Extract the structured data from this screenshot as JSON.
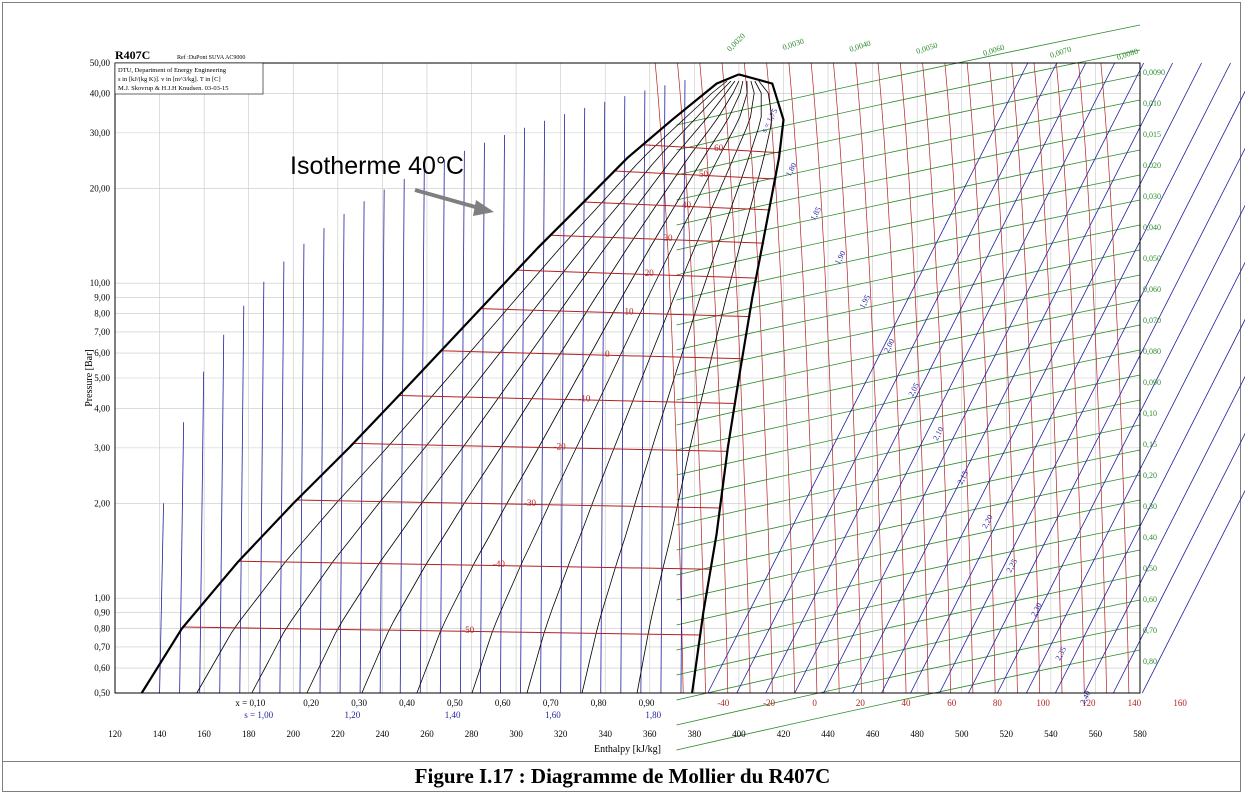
{
  "caption": "Figure I.17 : Diagramme de Mollier du R407C",
  "annotation": {
    "text": "Isotherme 40°C"
  },
  "chart_data": {
    "type": "line",
    "title": "R407C",
    "subtitle": "Ref :DuPont SUVA AC9000",
    "info_lines": [
      "DTU, Department of Energy Engineering",
      "s in [kJ/(kg K)]. v in [m^3/kg]. T in [C]",
      "M.J. Skovrup & H.J.H Knudsen. 03-03-15"
    ],
    "xlabel": "Enthalpy [kJ/kg]",
    "ylabel": "Pressure [Bar]",
    "xlim": [
      120,
      580
    ],
    "ylim": [
      0.5,
      50
    ],
    "yscale": "log",
    "grid": true,
    "x_ticks": [
      "120",
      "140",
      "160",
      "180",
      "200",
      "220",
      "240",
      "260",
      "280",
      "300",
      "320",
      "340",
      "360",
      "380",
      "400",
      "420",
      "440",
      "460",
      "480",
      "500",
      "520",
      "540",
      "560",
      "580"
    ],
    "y_ticks": [
      "0,50",
      "0,60",
      "0,70",
      "0,80",
      "0,90",
      "1,00",
      "2,00",
      "3,00",
      "4,00",
      "5,00",
      "6,00",
      "7,00",
      "8,00",
      "9,00",
      "10,00",
      "20,00",
      "30,00",
      "40,00",
      "50,00"
    ],
    "quality_labels": [
      "x = 0,10",
      "0,20",
      "0,30",
      "0,40",
      "0,50",
      "0,60",
      "0,70",
      "0,80",
      "0,90"
    ],
    "entropy_bottom_labels": [
      "s = 1,00",
      "1,20",
      "1,40",
      "1,60",
      "1,80"
    ],
    "temp_bottom_labels": [
      "-40",
      "-20",
      "0",
      "20",
      "40",
      "60",
      "80",
      "100",
      "120",
      "140",
      "160"
    ],
    "isotherm_labels": [
      "60",
      "50",
      "40",
      "30",
      "20",
      "10",
      "0",
      "-10",
      "-20",
      "-30",
      "-40",
      "-50"
    ],
    "entropy_vapor_labels": [
      "s = 1,75",
      "1,80",
      "1,85",
      "1,90",
      "1,95",
      "2,00",
      "2,05",
      "2,10",
      "2,15",
      "2,20",
      "2,25",
      "2,30",
      "2,35",
      "2,40"
    ],
    "volume_labels": [
      "0,0030",
      "0,0040",
      "0,0050",
      "0,0060",
      "0,0070",
      "0,0080",
      "0,0090",
      "0,010",
      "0,015",
      "0,020",
      "0,030",
      "0,040",
      "0,050",
      "0,060",
      "0,070",
      "0,080",
      "0,090",
      "0,10",
      "0,15",
      "0,20",
      "0,30",
      "0,40",
      "0,50",
      "0,60",
      "0,70",
      "0,80"
    ],
    "volume_top_label": "0,0020",
    "saturation_dome": {
      "liquid": [
        [
          132,
          0.5
        ],
        [
          150,
          0.8
        ],
        [
          175,
          1.3
        ],
        [
          200,
          2.0
        ],
        [
          225,
          3.0
        ],
        [
          250,
          4.6
        ],
        [
          270,
          6.5
        ],
        [
          290,
          9.2
        ],
        [
          310,
          13
        ],
        [
          330,
          18
        ],
        [
          350,
          25
        ],
        [
          370,
          33
        ],
        [
          390,
          43
        ],
        [
          400,
          46
        ]
      ],
      "vapor": [
        [
          400,
          46
        ],
        [
          415,
          43
        ],
        [
          420,
          33
        ],
        [
          418,
          25
        ],
        [
          412,
          15
        ],
        [
          406,
          9
        ],
        [
          400,
          5
        ],
        [
          395,
          3
        ],
        [
          390,
          1.6
        ],
        [
          384,
          0.9
        ],
        [
          379,
          0.5
        ]
      ]
    },
    "isotherms": [
      {
        "label": "60",
        "p": 27.5
      },
      {
        "label": "50",
        "p": 22.7
      },
      {
        "label": "40",
        "p": 18.1
      },
      {
        "label": "30",
        "p": 14.2
      },
      {
        "label": "20",
        "p": 11.0
      },
      {
        "label": "10",
        "p": 8.3
      },
      {
        "label": "0",
        "p": 6.1
      },
      {
        "label": "-10",
        "p": 4.4
      },
      {
        "label": "-20",
        "p": 3.1
      },
      {
        "label": "-30",
        "p": 2.05
      },
      {
        "label": "-40",
        "p": 1.31
      },
      {
        "label": "-50",
        "p": 0.81
      }
    ],
    "colors": {
      "frame": "#000000",
      "grid": "#c8c8c8",
      "saturation": "#000000",
      "quality": "#000000",
      "isotherm": "#b22222",
      "entropy": "#1f1fa0",
      "volume": "#2e8b2e",
      "annotation_arrow": "#7f7f7f"
    }
  }
}
